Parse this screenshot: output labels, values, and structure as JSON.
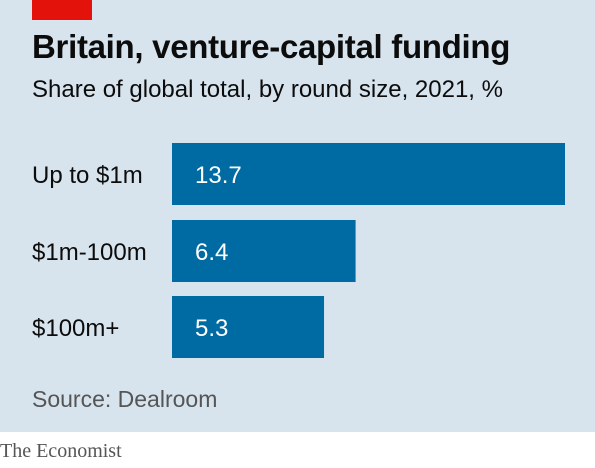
{
  "chart_data": {
    "type": "bar",
    "orientation": "horizontal",
    "title": "Britain, venture-capital funding",
    "subtitle": "Share of global total, by round size, 2021, %",
    "categories": [
      "Up to $1m",
      "$1m-100m",
      "$100m+"
    ],
    "values": [
      13.7,
      6.4,
      5.3
    ],
    "value_labels": [
      "13.7",
      "6.4",
      "5.3"
    ],
    "source": "Source: Dealroom",
    "xlim": [
      0,
      13.7
    ],
    "grid": false,
    "bar_color": "#006ba2"
  },
  "brand": "The Economist",
  "colors": {
    "background": "#d7e4ed",
    "accent_tag": "#e3120b",
    "bar": "#006ba2"
  }
}
